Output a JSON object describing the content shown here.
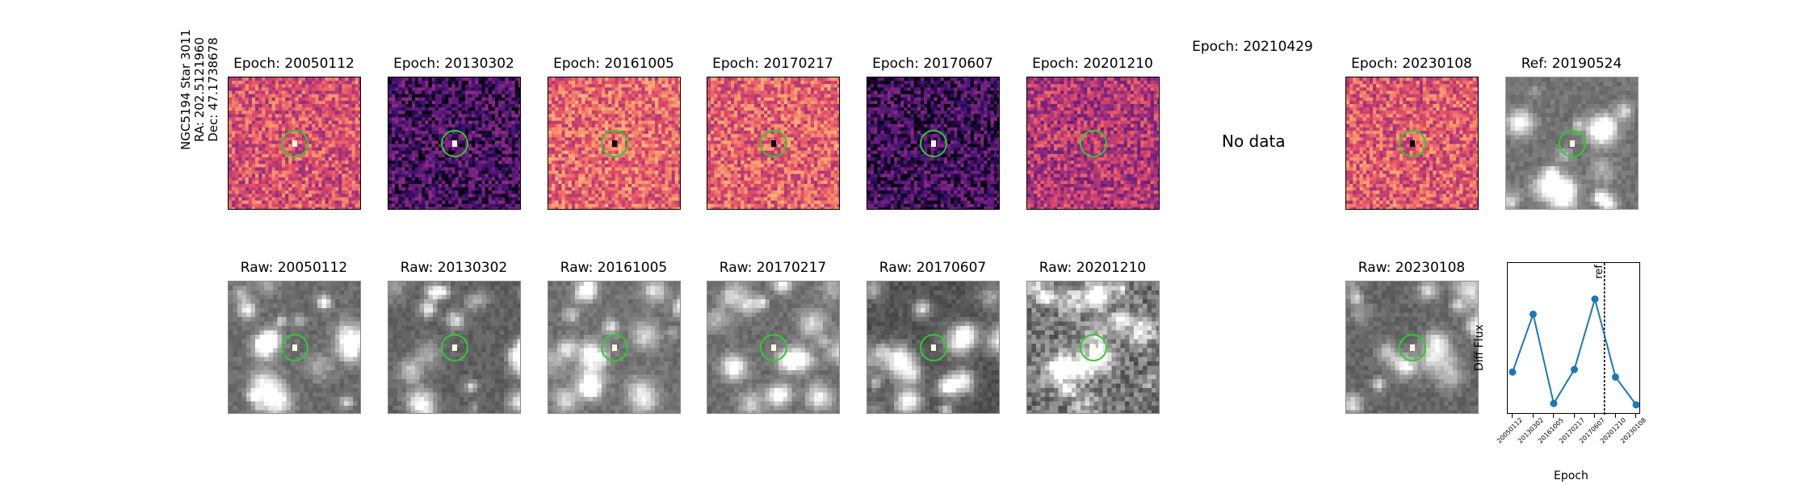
{
  "star": {
    "name": "NGC5194 Star 3011",
    "ra": "RA: 202.5121960",
    "dec": "Dec: 47.1738678"
  },
  "diff_titles": [
    "Epoch: 20050112",
    "Epoch: 20130302",
    "Epoch: 20161005",
    "Epoch: 20170217",
    "Epoch: 20170607",
    "Epoch: 20201210",
    "Epoch: 20210429",
    "Epoch: 20230108"
  ],
  "ref_title": "Ref: 20190524",
  "raw_titles": [
    "Raw: 20050112",
    "Raw: 20130302",
    "Raw: 20161005",
    "Raw: 20170217",
    "Raw: 20170607",
    "Raw: 20201210",
    "Raw: 20230108"
  ],
  "no_data_text": "No data",
  "colors": {
    "circle": "#2ecc2e",
    "line": "#1f77b4",
    "diff_dark": "#3b0f70",
    "diff_light": "#fcfdbf"
  },
  "chart_data": {
    "type": "line",
    "title": "",
    "xlabel": "Epoch",
    "ylabel": "Diff Flux",
    "categories": [
      "20050112",
      "20130302",
      "20161005",
      "20170217",
      "20170607",
      "20201210",
      "20230108"
    ],
    "series": [
      {
        "values": [
          0.3,
          0.76,
          0.05,
          0.32,
          0.88,
          0.26,
          0.04
        ]
      }
    ],
    "ylim": [
      0,
      1
    ],
    "reference_line": {
      "label": "ref",
      "position_between": [
        "20170607",
        "20201210"
      ]
    },
    "grid": false
  }
}
